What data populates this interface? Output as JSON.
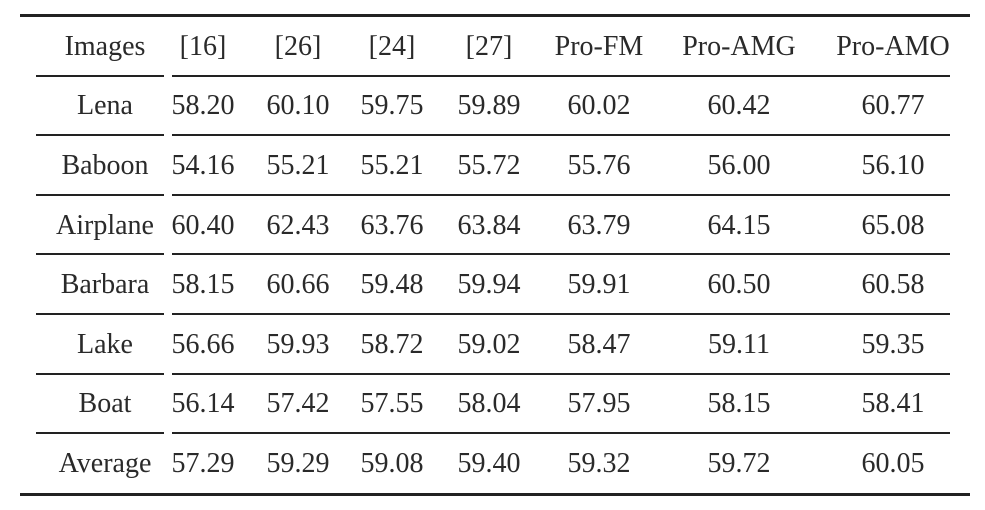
{
  "table": {
    "headers": [
      "Images",
      "[16]",
      "[26]",
      "[24]",
      "[27]",
      "Pro-FM",
      "Pro-AMG",
      "Pro-AMO"
    ],
    "rows": [
      [
        "Lena",
        "58.20",
        "60.10",
        "59.75",
        "59.89",
        "60.02",
        "60.42",
        "60.77"
      ],
      [
        "Baboon",
        "54.16",
        "55.21",
        "55.21",
        "55.72",
        "55.76",
        "56.00",
        "56.10"
      ],
      [
        "Airplane",
        "60.40",
        "62.43",
        "63.76",
        "63.84",
        "63.79",
        "64.15",
        "65.08"
      ],
      [
        "Barbara",
        "58.15",
        "60.66",
        "59.48",
        "59.94",
        "59.91",
        "60.50",
        "60.58"
      ],
      [
        "Lake",
        "56.66",
        "59.93",
        "58.72",
        "59.02",
        "58.47",
        "59.11",
        "59.35"
      ],
      [
        "Boat",
        "56.14",
        "57.42",
        "57.55",
        "58.04",
        "57.95",
        "58.15",
        "58.41"
      ],
      [
        "Average",
        "57.29",
        "59.29",
        "59.08",
        "59.40",
        "59.32",
        "59.72",
        "60.05"
      ]
    ]
  }
}
